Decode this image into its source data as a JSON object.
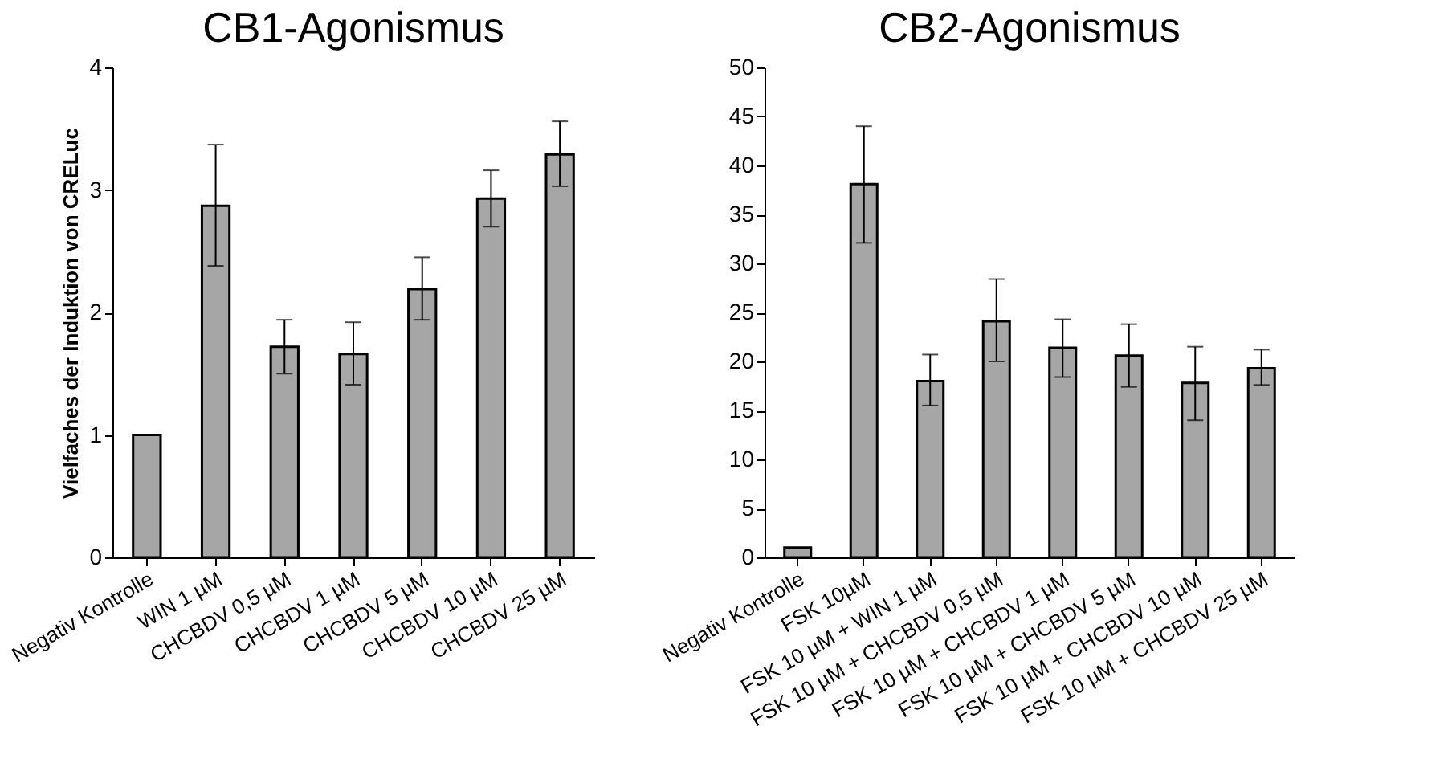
{
  "chart_data": [
    {
      "type": "bar",
      "title": "CB1-Agonismus",
      "ylabel": "Vielfaches der Induktion von CRELuc",
      "categories": [
        "Negativ Kontrolle",
        "WIN 1 µM",
        "CHCBDV 0,5 µM",
        "CHCBDV 1 µM",
        "CHCBDV 5 µM",
        "CHCBDV 10 µM",
        "CHCBDV 25 µM"
      ],
      "values": [
        1.0,
        2.87,
        1.72,
        1.66,
        2.19,
        2.93,
        3.29
      ],
      "errors": [
        null,
        [
          2.38,
          3.37
        ],
        [
          1.5,
          1.94
        ],
        [
          1.41,
          1.92
        ],
        [
          1.94,
          2.45
        ],
        [
          2.7,
          3.16
        ],
        [
          3.03,
          3.56
        ]
      ],
      "color": "#a6a6a6",
      "ylim": [
        0,
        4
      ],
      "yticks": [
        0,
        1,
        2,
        3,
        4
      ],
      "grid": false
    },
    {
      "type": "bar",
      "title": "CB2-Agonismus",
      "categories": [
        "Negativ Kontrolle",
        "FSK 10µM",
        "FSK 10 µM + WIN 1 µM",
        "FSK 10 µM + CHCBDV 0,5 µM",
        "FSK 10 µM + CHCBDV 1 µM",
        "FSK 10 µM + CHCBDV 5 µM",
        "FSK 10 µM + CHCBDV 10 µM",
        "FSK 10 µM + CHCBDV 25 µM"
      ],
      "values": [
        1.0,
        38.1,
        18.0,
        24.1,
        21.4,
        20.6,
        17.8,
        19.3
      ],
      "errors": [
        null,
        [
          32.1,
          44.0
        ],
        [
          15.5,
          20.7
        ],
        [
          20.0,
          28.4
        ],
        [
          18.4,
          24.3
        ],
        [
          17.4,
          23.8
        ],
        [
          14.0,
          21.5
        ],
        [
          17.6,
          21.2
        ]
      ],
      "color": "#a6a6a6",
      "ylim": [
        0,
        50
      ],
      "yticks": [
        0,
        5,
        10,
        15,
        20,
        25,
        30,
        35,
        40,
        45,
        50
      ],
      "grid": false
    }
  ]
}
